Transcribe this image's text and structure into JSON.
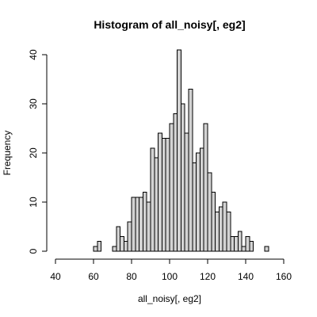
{
  "chart_data": {
    "type": "bar",
    "title": "Histogram of all_noisy[, eg2]",
    "xlabel": "all_noisy[, eg2]",
    "ylabel": "Frequency",
    "xlim": [
      40,
      160
    ],
    "ylim": [
      0,
      40
    ],
    "x_ticks": [
      40,
      60,
      80,
      100,
      120,
      140,
      160
    ],
    "y_ticks": [
      0,
      10,
      20,
      30,
      40
    ],
    "bin_width": 2,
    "bin_starts": [
      60,
      62,
      64,
      66,
      68,
      70,
      72,
      74,
      76,
      78,
      80,
      82,
      84,
      86,
      88,
      90,
      92,
      94,
      96,
      98,
      100,
      102,
      104,
      106,
      108,
      110,
      112,
      114,
      116,
      118,
      120,
      122,
      124,
      126,
      128,
      130,
      132,
      134,
      136,
      138,
      140,
      142,
      144,
      146,
      148,
      150
    ],
    "values": [
      1,
      2,
      0,
      0,
      0,
      1,
      5,
      3,
      2,
      6,
      11,
      11,
      11,
      12,
      10,
      21,
      19,
      24,
      23,
      23,
      26,
      28,
      41,
      30,
      24,
      33,
      18,
      20,
      21,
      26,
      16,
      12,
      8,
      9,
      10,
      8,
      3,
      3,
      4,
      1,
      3,
      2,
      0,
      0,
      0,
      1
    ],
    "colors": {
      "bar_fill": "#d3d3d3",
      "bar_stroke": "#000000"
    },
    "grid": false
  }
}
